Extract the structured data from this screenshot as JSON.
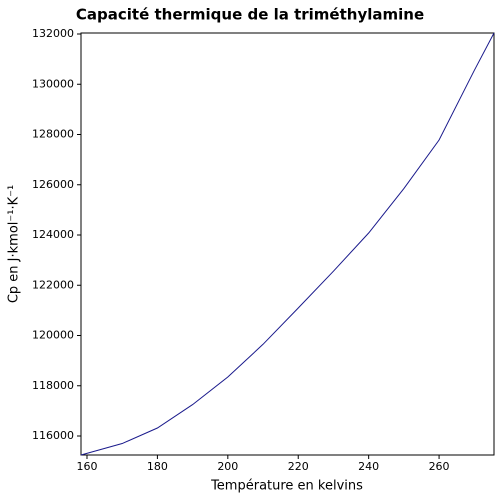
{
  "chart_data": {
    "type": "line",
    "title": "Capacité thermique de la triméthylamine",
    "x_label": "Température en kelvins",
    "y_label": "Cp en J·kmol⁻¹·K⁻¹",
    "series": [
      {
        "name": "Cp",
        "color": "#1a1a8c",
        "x": [
          158.3,
          170,
          180,
          190,
          200,
          210,
          220,
          230,
          240,
          250,
          260,
          270,
          275.6
        ],
        "values": [
          115244,
          115700,
          116318,
          117250,
          118348,
          119650,
          121094,
          122560,
          124080,
          125850,
          127781,
          130550,
          132040
        ]
      }
    ],
    "xlim": [
      158.3,
      275.6
    ],
    "ylim": [
      115244,
      132040
    ],
    "xticks": [
      160,
      180,
      200,
      220,
      240,
      260
    ],
    "yticks": [
      116000,
      118000,
      120000,
      122000,
      124000,
      126000,
      128000,
      130000,
      132000
    ]
  }
}
